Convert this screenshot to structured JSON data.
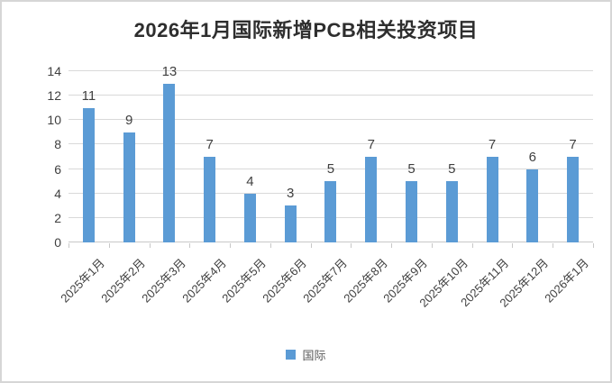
{
  "chart_data": {
    "type": "bar",
    "title": "2026年1月国际新增PCB相关投资项目",
    "categories": [
      "2025年1月",
      "2025年2月",
      "2025年3月",
      "2025年4月",
      "2025年5月",
      "2025年6月",
      "2025年7月",
      "2025年8月",
      "2025年9月",
      "2025年10月",
      "2025年11月",
      "2025年12月",
      "2026年1月"
    ],
    "series": [
      {
        "name": "国际",
        "values": [
          11,
          9,
          13,
          7,
          4,
          3,
          5,
          7,
          5,
          5,
          7,
          6,
          7
        ],
        "color": "#5b9bd5"
      }
    ],
    "ylim": [
      0,
      14
    ],
    "yticks": [
      0,
      2,
      4,
      6,
      8,
      10,
      12,
      14
    ],
    "grid": true,
    "data_labels": true,
    "legend_position": "bottom",
    "xlabel": "",
    "ylabel": ""
  },
  "colors": {
    "bar": "#5b9bd5",
    "gridline": "#d9d9d9",
    "axis_line": "#c8c8c8",
    "title_text": "#2e2e2e",
    "label_text": "#404040",
    "legend_text": "#595959",
    "page_border": "#d6d6d6",
    "background": "#ffffff"
  },
  "legend": {
    "item_label": "国际"
  }
}
